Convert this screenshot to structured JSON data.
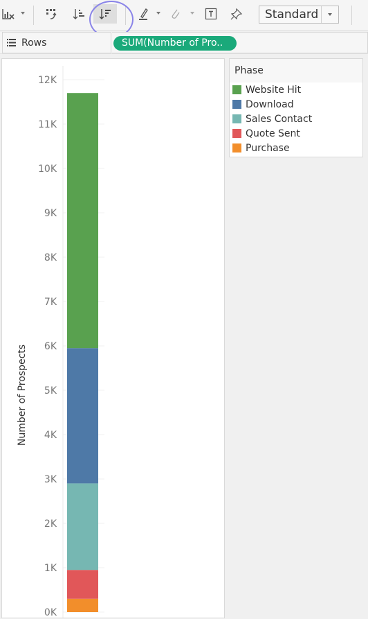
{
  "toolbar": {
    "fit_value": "Standard",
    "icons": [
      "show-me-icon",
      "swap-icon",
      "sort-ascending-icon",
      "sort-descending-icon",
      "highlight-pen-icon",
      "annotate-icon",
      "labels-icon",
      "pin-icon"
    ]
  },
  "shelf": {
    "label": "Rows",
    "pill": "SUM(Number of Pro.."
  },
  "legend": {
    "title": "Phase",
    "items": [
      {
        "label": "Website Hit",
        "color": "#59a14f"
      },
      {
        "label": "Download",
        "color": "#4e79a7"
      },
      {
        "label": "Sales Contact",
        "color": "#76b7b2"
      },
      {
        "label": "Quote Sent",
        "color": "#e15759"
      },
      {
        "label": "Purchase",
        "color": "#f28e2b"
      }
    ]
  },
  "chart_data": {
    "type": "bar",
    "stacked": true,
    "ylabel": "Number of Prospects",
    "ylim": [
      0,
      12000
    ],
    "yticks": [
      "0K",
      "1K",
      "2K",
      "3K",
      "4K",
      "5K",
      "6K",
      "7K",
      "8K",
      "9K",
      "10K",
      "11K",
      "12K"
    ],
    "series": [
      {
        "name": "Purchase",
        "value": 300,
        "color": "#f28e2b"
      },
      {
        "name": "Quote Sent",
        "value": 650,
        "color": "#e15759"
      },
      {
        "name": "Sales Contact",
        "value": 1950,
        "color": "#76b7b2"
      },
      {
        "name": "Download",
        "value": 3050,
        "color": "#4e79a7"
      },
      {
        "name": "Website Hit",
        "value": 5750,
        "color": "#59a14f"
      }
    ]
  }
}
